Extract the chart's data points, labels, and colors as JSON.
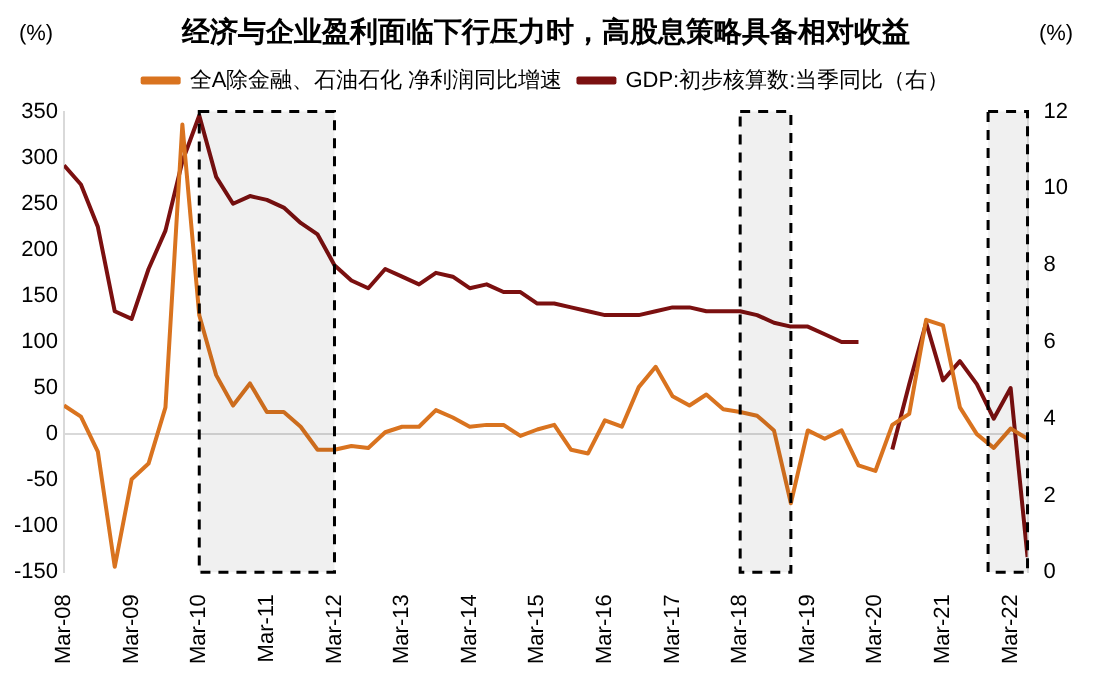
{
  "chart_data": {
    "type": "line",
    "title": "经济与企业盈利面临下行压力时，高股息策略具备相对收益",
    "ylabel": "(%)",
    "y2label": "(%)",
    "x": [
      "2008-03",
      "2008-06",
      "2008-09",
      "2008-12",
      "2009-03",
      "2009-06",
      "2009-09",
      "2009-12",
      "2010-03",
      "2010-06",
      "2010-09",
      "2010-12",
      "2011-03",
      "2011-06",
      "2011-09",
      "2011-12",
      "2012-03",
      "2012-06",
      "2012-09",
      "2012-12",
      "2013-03",
      "2013-06",
      "2013-09",
      "2013-12",
      "2014-03",
      "2014-06",
      "2014-09",
      "2014-12",
      "2015-03",
      "2015-06",
      "2015-09",
      "2015-12",
      "2016-03",
      "2016-06",
      "2016-09",
      "2016-12",
      "2017-03",
      "2017-06",
      "2017-09",
      "2017-12",
      "2018-03",
      "2018-06",
      "2018-09",
      "2018-12",
      "2019-03",
      "2019-06",
      "2019-09",
      "2019-12",
      "2020-03",
      "2020-06",
      "2020-09",
      "2020-12",
      "2021-03",
      "2021-06",
      "2021-09",
      "2021-12",
      "2022-03",
      "2022-06"
    ],
    "series": [
      {
        "name": "全A除金融、石油石化 净利润同比增速",
        "color": "#d9731f",
        "values": [
          31,
          19,
          -19,
          -144,
          -49,
          -32,
          29,
          336,
          129,
          64,
          31,
          55,
          24,
          24,
          8,
          -17,
          -17,
          -13,
          -15,
          2,
          8,
          8,
          26,
          18,
          8,
          10,
          10,
          -2,
          5,
          10,
          -17,
          -21,
          15,
          8,
          51,
          73,
          41,
          31,
          43,
          27,
          24,
          20,
          4,
          -75,
          4,
          -5,
          4,
          -34,
          -40,
          10,
          22,
          124,
          118,
          29,
          0,
          -15,
          6,
          -5
        ]
      },
      {
        "name": "GDP:初步核算数:当季同比（右）",
        "color": "#7b1010",
        "axis": "y2",
        "values": [
          10.6,
          10.1,
          9.0,
          6.8,
          6.6,
          7.9,
          8.9,
          10.7,
          11.9,
          10.3,
          9.6,
          9.8,
          9.7,
          9.5,
          9.1,
          8.8,
          8.0,
          7.6,
          7.4,
          7.9,
          7.7,
          7.5,
          7.8,
          7.7,
          7.4,
          7.5,
          7.3,
          7.3,
          7.0,
          7.0,
          6.9,
          6.8,
          6.7,
          6.7,
          6.7,
          6.8,
          6.9,
          6.9,
          6.8,
          6.8,
          6.8,
          6.7,
          6.5,
          6.4,
          6.4,
          6.2,
          6.0,
          6.0,
          null,
          3.2,
          4.9,
          6.5,
          5.0,
          5.5,
          4.9,
          4.0,
          4.8,
          0.4
        ]
      }
    ],
    "xlim": [
      "2008-03",
      "2022-06"
    ],
    "xticks": [
      {
        "value": "2008-03",
        "label": "Mar-08"
      },
      {
        "value": "2009-03",
        "label": "Mar-09"
      },
      {
        "value": "2010-03",
        "label": "Mar-10"
      },
      {
        "value": "2011-03",
        "label": "Mar-11"
      },
      {
        "value": "2012-03",
        "label": "Mar-12"
      },
      {
        "value": "2013-03",
        "label": "Mar-13"
      },
      {
        "value": "2014-03",
        "label": "Mar-14"
      },
      {
        "value": "2015-03",
        "label": "Mar-15"
      },
      {
        "value": "2016-03",
        "label": "Mar-16"
      },
      {
        "value": "2017-03",
        "label": "Mar-17"
      },
      {
        "value": "2018-03",
        "label": "Mar-18"
      },
      {
        "value": "2019-03",
        "label": "Mar-19"
      },
      {
        "value": "2020-03",
        "label": "Mar-20"
      },
      {
        "value": "2021-03",
        "label": "Mar-21"
      },
      {
        "value": "2022-03",
        "label": "Mar-22"
      }
    ],
    "ylim": [
      -150,
      350
    ],
    "yticks": [
      -150,
      -100,
      -50,
      0,
      50,
      100,
      150,
      200,
      250,
      300,
      350
    ],
    "y2lim": [
      0,
      12
    ],
    "y2ticks": [
      0,
      2,
      4,
      6,
      8,
      10,
      12
    ],
    "ref_lines": [
      {
        "axis": "y",
        "value": 0,
        "color": "#d9d9d9"
      }
    ],
    "bands": [
      {
        "axis": "x",
        "from": "2010-03",
        "to": "2012-03",
        "color": "#000000"
      },
      {
        "axis": "x",
        "from": "2018-03",
        "to": "2018-12",
        "color": "#000000"
      },
      {
        "axis": "x",
        "from": "2021-11",
        "to": "2022-06",
        "color": "#000000"
      }
    ],
    "legend": "top",
    "grid": false,
    "marker": "none",
    "line_style": "solid"
  }
}
